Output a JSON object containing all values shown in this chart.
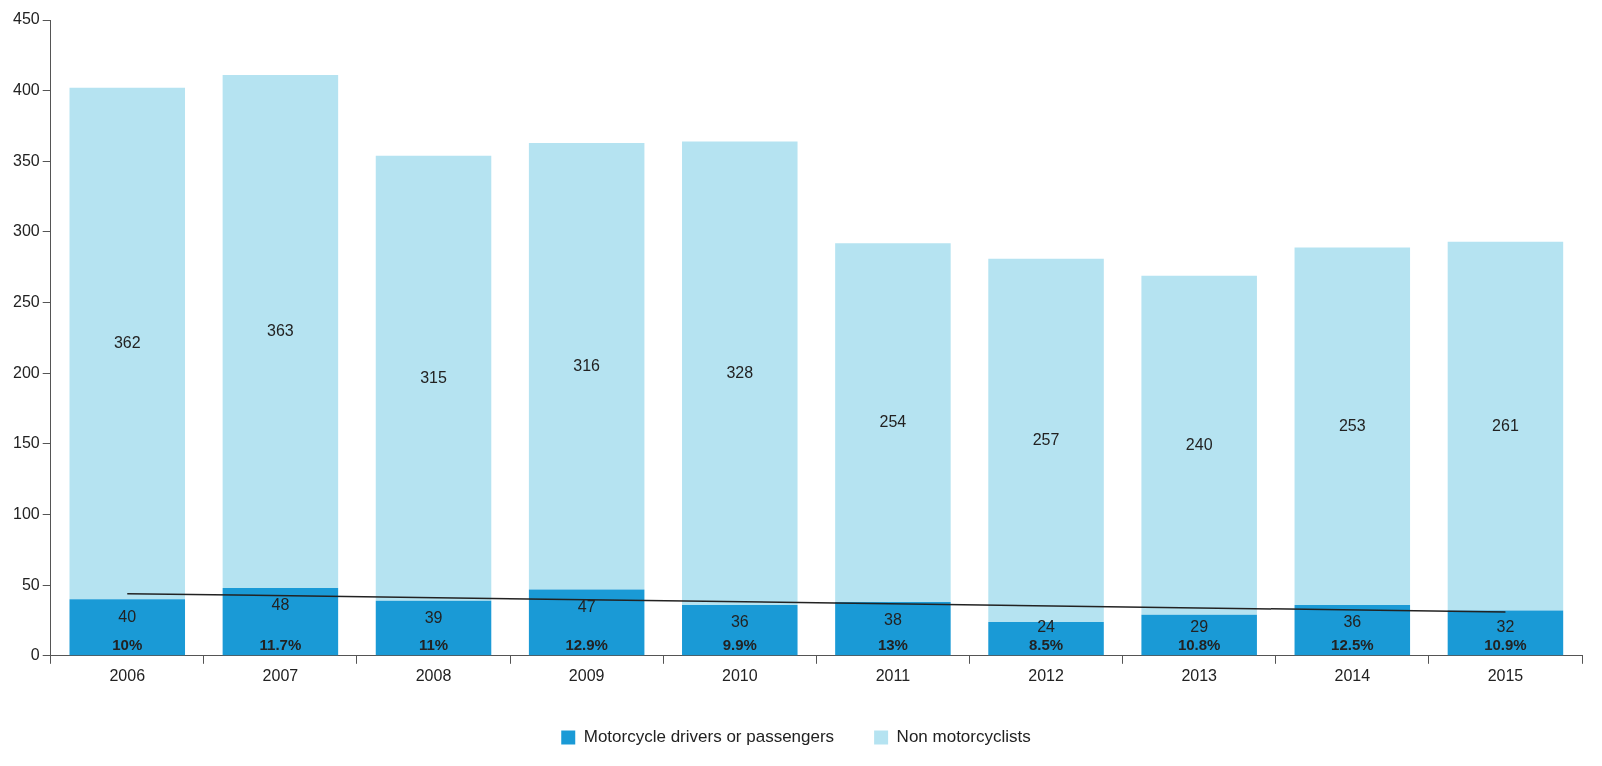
{
  "chart_data": {
    "type": "bar",
    "stacked": true,
    "categories": [
      "2006",
      "2007",
      "2008",
      "2009",
      "2010",
      "2011",
      "2012",
      "2013",
      "2014",
      "2015"
    ],
    "series": [
      {
        "name": "Motorcycle drivers or passengers",
        "color": "#1a9ad6",
        "values": [
          40,
          48,
          39,
          47,
          36,
          38,
          24,
          29,
          36,
          32
        ],
        "value_labels": [
          "40",
          "48",
          "39",
          "47",
          "36",
          "38",
          "24",
          "29",
          "36",
          "32"
        ]
      },
      {
        "name": "Non motorcyclists",
        "color": "#b5e3f1",
        "values": [
          362,
          363,
          315,
          316,
          328,
          254,
          257,
          240,
          253,
          261
        ],
        "value_labels": [
          "362",
          "363",
          "315",
          "316",
          "328",
          "254",
          "257",
          "240",
          "253",
          "261"
        ]
      },
      {
        "type": "line",
        "color": "#222222",
        "values": [
          44,
          null,
          null,
          null,
          null,
          null,
          null,
          null,
          null,
          31
        ]
      }
    ],
    "annotations": [
      "10%",
      "11.7%",
      "11%",
      "12.9%",
      "9.9%",
      "13%",
      "8.5%",
      "10.8%",
      "12.5%",
      "10.9%"
    ],
    "ylim": [
      0,
      450
    ],
    "yticks": [
      0,
      50,
      100,
      150,
      200,
      250,
      300,
      350,
      400,
      450
    ],
    "grid": false,
    "legend": "bottom",
    "marker": "none",
    "line_style": "solid"
  }
}
